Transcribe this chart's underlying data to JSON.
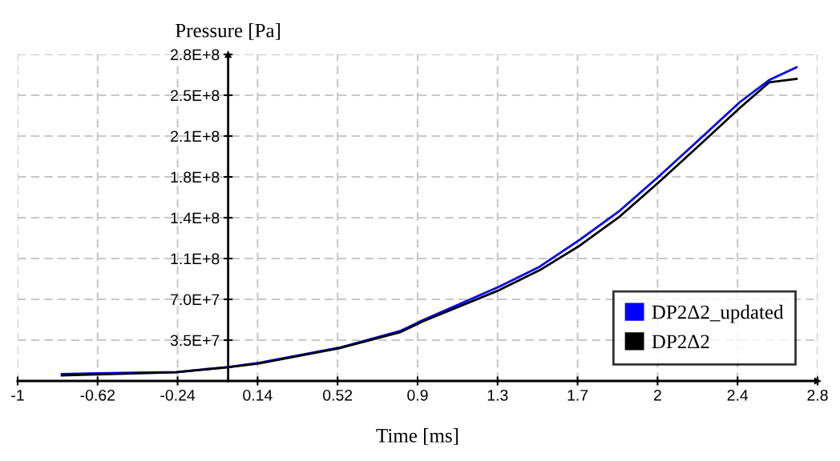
{
  "chart_data": {
    "type": "line",
    "xlabel": "Time [ms]",
    "ylabel": "Pressure [Pa]",
    "xlim": [
      -1,
      2.8
    ],
    "ylim": [
      0,
      280000000
    ],
    "xticks": [
      -1,
      -0.62,
      -0.24,
      0.14,
      0.52,
      0.9,
      {
        "value": 1.28,
        "label": "1.3"
      },
      {
        "value": 1.66,
        "label": "1.7"
      },
      {
        "value": 2.04,
        "label": "2"
      },
      {
        "value": 2.42,
        "label": "2.4"
      },
      2.8
    ],
    "yticks": [
      {
        "value": 0,
        "label": null
      },
      {
        "value": 35000000,
        "label": "3.5E+7"
      },
      {
        "value": 70000000,
        "label": "7.0E+7"
      },
      {
        "value": 105000000,
        "label": "1.1E+8"
      },
      {
        "value": 140000000,
        "label": "1.4E+8"
      },
      {
        "value": 175000000,
        "label": "1.8E+8"
      },
      {
        "value": 210000000,
        "label": "2.1E+8"
      },
      {
        "value": 245000000,
        "label": "2.5E+8"
      },
      {
        "value": 280000000,
        "label": "2.8E+8"
      }
    ],
    "grid": true,
    "legend": "bottom right",
    "marker": "none",
    "line_style": "solid",
    "series": [
      {
        "name": "DP2Δ2_updated",
        "color": "#0000ff",
        "x": [
          -0.79,
          -0.627,
          -0.246,
          0.0,
          0.146,
          0.527,
          0.82,
          0.923,
          1.289,
          1.48,
          1.67,
          1.86,
          2.05,
          2.256,
          2.43,
          2.57,
          2.7
        ],
        "values": [
          5900000,
          6600000,
          7700000,
          12000000,
          15500000,
          28500000,
          43000000,
          52000000,
          81000000,
          98000000,
          121000000,
          146000000,
          176000000,
          210000000,
          239000000,
          258000000,
          269000000
        ]
      },
      {
        "name": "DP2Δ2",
        "color": "#000000",
        "x": [
          -0.79,
          -0.627,
          -0.246,
          0.0,
          0.146,
          0.527,
          0.82,
          0.923,
          1.289,
          1.48,
          1.67,
          1.86,
          2.05,
          2.256,
          2.43,
          2.57,
          2.7
        ],
        "values": [
          4800000,
          5500000,
          7500000,
          11700000,
          15000000,
          28000000,
          42000000,
          51000000,
          78000000,
          95000000,
          116000000,
          141000000,
          171000000,
          205000000,
          234000000,
          256000000,
          259000000
        ]
      }
    ]
  }
}
